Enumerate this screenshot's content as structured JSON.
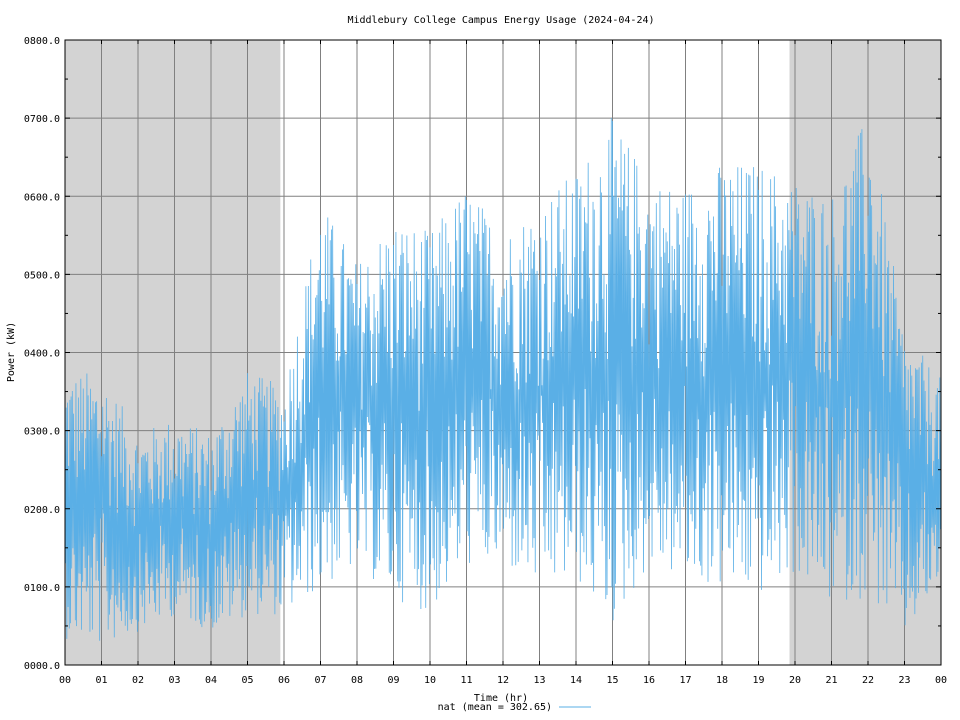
{
  "chart_data": {
    "type": "line",
    "title": "Middlebury College Campus Energy Usage (2024-04-24)",
    "xlabel": "Time (hr)",
    "ylabel": "Power (kW)",
    "xlim": [
      0,
      24
    ],
    "ylim": [
      0,
      800
    ],
    "grid": true,
    "legend_position": "bottom-center",
    "x_tick_labels": [
      "00",
      "01",
      "02",
      "03",
      "04",
      "05",
      "06",
      "07",
      "08",
      "09",
      "10",
      "11",
      "12",
      "13",
      "14",
      "15",
      "16",
      "17",
      "18",
      "19",
      "20",
      "21",
      "22",
      "23",
      "00"
    ],
    "y_tick_labels": [
      "0000.0",
      "0100.0",
      "0200.0",
      "0300.0",
      "0400.0",
      "0500.0",
      "0600.0",
      "0700.0",
      "0800.0"
    ],
    "shaded_regions_hr": [
      [
        0,
        5.9
      ],
      [
        19.85,
        24
      ]
    ],
    "series": [
      {
        "name": "nat",
        "legend_label": "nat (mean = 302.65)",
        "color": "#5aafe6",
        "mean": 302.65,
        "hourly_envelope": {
          "hours": [
            0,
            1,
            2,
            3,
            4,
            5,
            6,
            7,
            8,
            9,
            10,
            11,
            12,
            13,
            14,
            15,
            16,
            17,
            18,
            19,
            20,
            21,
            22,
            23,
            24
          ],
          "min": [
            30,
            20,
            40,
            60,
            40,
            60,
            60,
            90,
            120,
            80,
            60,
            120,
            120,
            90,
            100,
            40,
            120,
            100,
            90,
            80,
            110,
            70,
            80,
            30,
            100
          ],
          "max": [
            380,
            380,
            300,
            320,
            300,
            380,
            360,
            600,
            520,
            580,
            560,
            620,
            560,
            600,
            640,
            710,
            630,
            620,
            650,
            650,
            630,
            610,
            715,
            430,
            370
          ]
        }
      }
    ]
  },
  "colors": {
    "shade": "#d3d3d3",
    "grid": "#808080",
    "series": "#5aafe6"
  }
}
